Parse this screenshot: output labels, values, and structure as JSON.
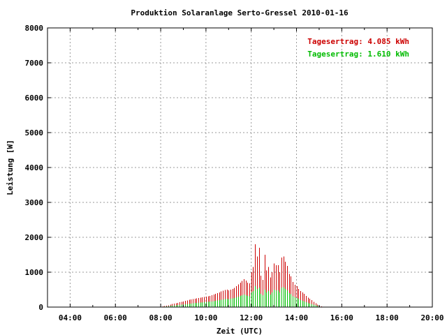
{
  "chart_data": {
    "type": "bar",
    "title": "Produktion Solaranlage Serto-Gressel 2010-01-16",
    "xlabel": "Zeit (UTC)",
    "ylabel": "Leistung [W]",
    "xlim_hours": [
      3.0,
      20.0
    ],
    "ylim": [
      0,
      8000
    ],
    "x_ticks": [
      "04:00",
      "06:00",
      "08:00",
      "10:00",
      "12:00",
      "14:00",
      "16:00",
      "18:00",
      "20:00"
    ],
    "y_ticks": [
      "0",
      "1000",
      "2000",
      "3000",
      "4000",
      "5000",
      "6000",
      "7000",
      "8000"
    ],
    "grid": true,
    "legend_position": "top-right",
    "annotations": [
      {
        "text": "Tagesertrag: 4.085 kWh",
        "color": "#cc0000"
      },
      {
        "text": "Tagesertrag: 1.610 kWh",
        "color": "#00bb00"
      }
    ],
    "sample_start": "08:00",
    "sample_interval_minutes": 5,
    "series": [
      {
        "color": "#cc0000",
        "values": [
          10,
          20,
          30,
          40,
          50,
          70,
          90,
          100,
          110,
          120,
          140,
          150,
          160,
          180,
          190,
          210,
          220,
          230,
          240,
          250,
          260,
          270,
          280,
          290,
          300,
          310,
          320,
          340,
          360,
          380,
          400,
          420,
          450,
          470,
          490,
          500,
          480,
          500,
          520,
          550,
          600,
          650,
          700,
          750,
          800,
          760,
          700,
          680,
          1000,
          1150,
          1800,
          1450,
          1700,
          900,
          780,
          1500,
          1050,
          1150,
          850,
          1000,
          1250,
          1200,
          1200,
          1000,
          1420,
          1450,
          1300,
          1180,
          950,
          880,
          720,
          640,
          600,
          520,
          460,
          420,
          380,
          320,
          270,
          240,
          200,
          150,
          110,
          70,
          40,
          20,
          10,
          5
        ]
      },
      {
        "color": "#00bb00",
        "values": [
          5,
          10,
          15,
          20,
          25,
          35,
          40,
          45,
          50,
          55,
          60,
          70,
          75,
          80,
          85,
          95,
          100,
          110,
          115,
          120,
          125,
          130,
          135,
          140,
          145,
          150,
          155,
          160,
          170,
          180,
          190,
          200,
          210,
          220,
          230,
          235,
          225,
          240,
          250,
          260,
          280,
          300,
          320,
          340,
          360,
          340,
          320,
          310,
          420,
          460,
          600,
          520,
          560,
          380,
          340,
          500,
          420,
          460,
          360,
          420,
          500,
          480,
          480,
          420,
          560,
          570,
          520,
          480,
          400,
          370,
          310,
          280,
          260,
          230,
          200,
          180,
          160,
          140,
          120,
          100,
          85,
          65,
          50,
          30,
          20,
          10,
          5,
          2
        ]
      }
    ]
  }
}
